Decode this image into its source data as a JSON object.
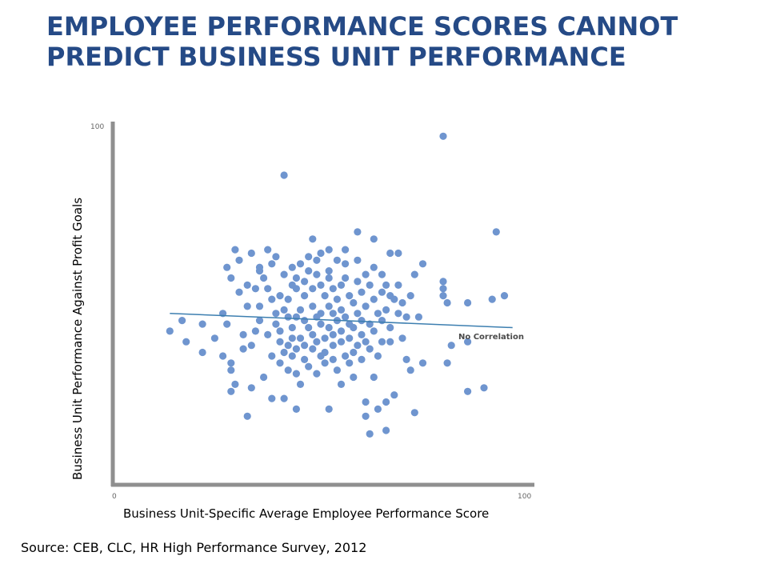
{
  "title": {
    "line1": "EMPLOYEE PERFORMANCE SCORES CANNOT",
    "line2": "PREDICT BUSINESS UNIT PERFORMANCE"
  },
  "source": "Source: CEB, CLC, HR High Performance Survey, 2012",
  "colors": {
    "title": "#254a86",
    "point": "#6f95cf",
    "trend": "#3d7fb0",
    "axis": "#8f8f8f"
  },
  "chart_data": {
    "type": "scatter",
    "title": "",
    "xlabel": "Business Unit-Specific Average Employee Performance Score",
    "ylabel": "Business Unit Performance Against Profit Goals",
    "xlim": [
      0,
      100
    ],
    "ylim": [
      0,
      100
    ],
    "x_ticks": [
      "0",
      "100"
    ],
    "y_ticks": [
      "100"
    ],
    "grid": false,
    "annotation": "No Correlation",
    "trend_line": {
      "x": [
        13,
        97
      ],
      "y": [
        47,
        43
      ]
    },
    "points": [
      [
        13,
        42
      ],
      [
        16,
        45
      ],
      [
        17,
        39
      ],
      [
        21,
        44
      ],
      [
        21,
        36
      ],
      [
        24,
        40
      ],
      [
        26,
        35
      ],
      [
        26,
        47
      ],
      [
        27,
        44
      ],
      [
        27,
        60
      ],
      [
        28,
        57
      ],
      [
        28,
        33
      ],
      [
        28,
        31
      ],
      [
        28,
        25
      ],
      [
        29,
        27
      ],
      [
        29,
        65
      ],
      [
        30,
        62
      ],
      [
        30,
        53
      ],
      [
        31,
        37
      ],
      [
        31,
        41
      ],
      [
        32,
        49
      ],
      [
        32,
        18
      ],
      [
        32,
        55
      ],
      [
        33,
        26
      ],
      [
        33,
        64
      ],
      [
        33,
        38
      ],
      [
        34,
        42
      ],
      [
        34,
        54
      ],
      [
        35,
        59
      ],
      [
        35,
        49
      ],
      [
        35,
        60
      ],
      [
        35,
        45
      ],
      [
        36,
        57
      ],
      [
        36,
        29
      ],
      [
        37,
        41
      ],
      [
        37,
        54
      ],
      [
        37,
        65
      ],
      [
        38,
        61
      ],
      [
        38,
        51
      ],
      [
        38,
        23
      ],
      [
        38,
        35
      ],
      [
        39,
        44
      ],
      [
        39,
        47
      ],
      [
        39,
        63
      ],
      [
        40,
        42
      ],
      [
        40,
        33
      ],
      [
        40,
        39
      ],
      [
        40,
        52
      ],
      [
        41,
        23
      ],
      [
        41,
        36
      ],
      [
        41,
        48
      ],
      [
        41,
        86
      ],
      [
        41,
        58
      ],
      [
        42,
        46
      ],
      [
        42,
        38
      ],
      [
        42,
        31
      ],
      [
        42,
        51
      ],
      [
        43,
        55
      ],
      [
        43,
        43
      ],
      [
        43,
        60
      ],
      [
        43,
        40
      ],
      [
        43,
        35
      ],
      [
        44,
        30
      ],
      [
        44,
        57
      ],
      [
        44,
        54
      ],
      [
        44,
        46
      ],
      [
        44,
        37
      ],
      [
        44,
        20
      ],
      [
        45,
        61
      ],
      [
        45,
        40
      ],
      [
        45,
        48
      ],
      [
        45,
        27
      ],
      [
        46,
        52
      ],
      [
        46,
        38
      ],
      [
        46,
        45
      ],
      [
        46,
        56
      ],
      [
        46,
        34
      ],
      [
        47,
        63
      ],
      [
        47,
        59
      ],
      [
        47,
        43
      ],
      [
        47,
        32
      ],
      [
        48,
        49
      ],
      [
        48,
        41
      ],
      [
        48,
        54
      ],
      [
        48,
        68
      ],
      [
        48,
        37
      ],
      [
        49,
        62
      ],
      [
        49,
        46
      ],
      [
        49,
        39
      ],
      [
        49,
        58
      ],
      [
        49,
        30
      ],
      [
        50,
        55
      ],
      [
        50,
        47
      ],
      [
        50,
        44
      ],
      [
        50,
        35
      ],
      [
        50,
        64
      ],
      [
        51,
        52
      ],
      [
        51,
        40
      ],
      [
        51,
        36
      ],
      [
        51,
        33
      ],
      [
        52,
        59
      ],
      [
        52,
        49
      ],
      [
        52,
        43
      ],
      [
        52,
        57
      ],
      [
        52,
        20
      ],
      [
        52,
        65
      ],
      [
        53,
        54
      ],
      [
        53,
        41
      ],
      [
        53,
        47
      ],
      [
        53,
        38
      ],
      [
        53,
        34
      ],
      [
        54,
        62
      ],
      [
        54,
        51
      ],
      [
        54,
        45
      ],
      [
        54,
        31
      ],
      [
        55,
        55
      ],
      [
        55,
        42
      ],
      [
        55,
        39
      ],
      [
        55,
        48
      ],
      [
        55,
        27
      ],
      [
        56,
        57
      ],
      [
        56,
        46
      ],
      [
        56,
        35
      ],
      [
        56,
        61
      ],
      [
        56,
        65
      ],
      [
        57,
        52
      ],
      [
        57,
        40
      ],
      [
        57,
        44
      ],
      [
        57,
        33
      ],
      [
        58,
        50
      ],
      [
        58,
        36
      ],
      [
        58,
        43
      ],
      [
        58,
        29
      ],
      [
        59,
        56
      ],
      [
        59,
        62
      ],
      [
        59,
        47
      ],
      [
        59,
        38
      ],
      [
        59,
        70
      ],
      [
        60,
        53
      ],
      [
        60,
        41
      ],
      [
        60,
        45
      ],
      [
        60,
        34
      ],
      [
        61,
        58
      ],
      [
        61,
        49
      ],
      [
        61,
        39
      ],
      [
        61,
        22
      ],
      [
        61,
        18
      ],
      [
        62,
        55
      ],
      [
        62,
        44
      ],
      [
        62,
        37
      ],
      [
        62,
        13
      ],
      [
        63,
        60
      ],
      [
        63,
        51
      ],
      [
        63,
        42
      ],
      [
        63,
        29
      ],
      [
        63,
        68
      ],
      [
        64,
        47
      ],
      [
        64,
        35
      ],
      [
        64,
        20
      ],
      [
        65,
        53
      ],
      [
        65,
        58
      ],
      [
        65,
        45
      ],
      [
        65,
        39
      ],
      [
        66,
        48
      ],
      [
        66,
        55
      ],
      [
        66,
        22
      ],
      [
        66,
        14
      ],
      [
        67,
        64
      ],
      [
        67,
        52
      ],
      [
        67,
        39
      ],
      [
        67,
        43
      ],
      [
        68,
        51
      ],
      [
        68,
        24
      ],
      [
        69,
        55
      ],
      [
        69,
        47
      ],
      [
        69,
        64
      ],
      [
        70,
        50
      ],
      [
        70,
        40
      ],
      [
        71,
        46
      ],
      [
        71,
        34
      ],
      [
        72,
        52
      ],
      [
        72,
        31
      ],
      [
        73,
        58
      ],
      [
        73,
        19
      ],
      [
        74,
        46
      ],
      [
        75,
        61
      ],
      [
        75,
        33
      ],
      [
        80,
        56
      ],
      [
        80,
        97
      ],
      [
        80,
        52
      ],
      [
        80,
        54
      ],
      [
        81,
        50
      ],
      [
        81,
        33
      ],
      [
        82,
        38
      ],
      [
        86,
        39
      ],
      [
        86,
        50
      ],
      [
        86,
        25
      ],
      [
        90,
        26
      ],
      [
        92,
        51
      ],
      [
        93,
        70
      ],
      [
        95,
        52
      ]
    ]
  }
}
